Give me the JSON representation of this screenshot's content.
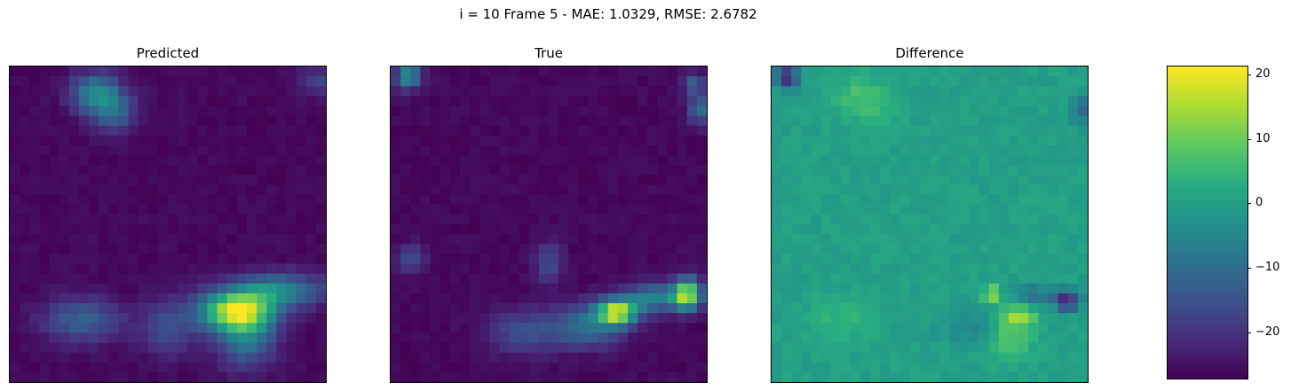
{
  "figure": {
    "suptitle": "i = 10 Frame 5 - MAE: 1.0329, RMSE: 2.6782"
  },
  "chart_data": [
    {
      "type": "heatmap",
      "title": "Predicted",
      "grid_size": [
        32,
        32
      ],
      "value_range": [
        0,
        14
      ],
      "blobs": [
        {
          "cx": 8.2,
          "cy": 2.2,
          "amp": 6,
          "sx": 1.8,
          "sy": 1.4
        },
        {
          "cx": 10.0,
          "cy": 4.2,
          "amp": 4,
          "sx": 1.6,
          "sy": 1.4
        },
        {
          "cx": 22.4,
          "cy": 24.3,
          "amp": 12,
          "sx": 2.6,
          "sy": 1.4
        },
        {
          "cx": 26.8,
          "cy": 22.2,
          "amp": 6,
          "sx": 3.2,
          "sy": 1.2
        },
        {
          "cx": 23.5,
          "cy": 27.0,
          "amp": 5,
          "sx": 2.0,
          "sy": 2.2
        },
        {
          "cx": 6.8,
          "cy": 25.2,
          "amp": 4,
          "sx": 2.8,
          "sy": 1.6
        },
        {
          "cx": 15.5,
          "cy": 26.0,
          "amp": 3,
          "sx": 2.0,
          "sy": 2.0
        },
        {
          "cx": 30.5,
          "cy": 1.0,
          "amp": 2.5,
          "sx": 1.2,
          "sy": 1.0
        }
      ]
    },
    {
      "type": "heatmap",
      "title": "True",
      "grid_size": [
        32,
        32
      ],
      "value_range": [
        0,
        14
      ],
      "blobs": [
        {
          "cx": 22.4,
          "cy": 24.4,
          "amp": 12,
          "sx": 1.4,
          "sy": 0.9
        },
        {
          "cx": 29.5,
          "cy": 22.6,
          "amp": 12,
          "sx": 1.0,
          "sy": 1.1
        },
        {
          "cx": 26.0,
          "cy": 23.0,
          "amp": 6,
          "sx": 2.0,
          "sy": 1.0
        },
        {
          "cx": 19.5,
          "cy": 25.8,
          "amp": 5,
          "sx": 2.5,
          "sy": 1.5
        },
        {
          "cx": 13.0,
          "cy": 26.5,
          "amp": 3,
          "sx": 2.6,
          "sy": 1.6
        },
        {
          "cx": 1.3,
          "cy": 0.5,
          "amp": 7,
          "sx": 0.9,
          "sy": 0.9
        },
        {
          "cx": 30.8,
          "cy": 3.8,
          "amp": 5,
          "sx": 0.8,
          "sy": 1.0
        },
        {
          "cx": 30.2,
          "cy": 1.2,
          "amp": 4,
          "sx": 0.8,
          "sy": 0.8
        },
        {
          "cx": 1.6,
          "cy": 19.0,
          "amp": 3,
          "sx": 1.0,
          "sy": 1.0
        },
        {
          "cx": 15.5,
          "cy": 19.5,
          "amp": 3,
          "sx": 1.0,
          "sy": 1.5
        }
      ]
    },
    {
      "type": "heatmap",
      "title": "Difference",
      "grid_size": [
        32,
        32
      ],
      "value_range": [
        -27.2,
        21.2
      ],
      "blobs": [
        {
          "cx": 8.2,
          "cy": 2.2,
          "amp": 6,
          "sx": 1.8,
          "sy": 1.4
        },
        {
          "cx": 10.0,
          "cy": 4.2,
          "amp": 4,
          "sx": 1.6,
          "sy": 1.4
        },
        {
          "cx": 6.8,
          "cy": 25.2,
          "amp": 4,
          "sx": 2.8,
          "sy": 1.6
        },
        {
          "cx": 24.5,
          "cy": 24.8,
          "amp": 14,
          "sx": 1.2,
          "sy": 0.8
        },
        {
          "cx": 21.8,
          "cy": 22.6,
          "amp": 16,
          "sx": 0.6,
          "sy": 0.6
        },
        {
          "cx": 23.5,
          "cy": 27.2,
          "amp": 8,
          "sx": 1.6,
          "sy": 1.4
        },
        {
          "cx": 29.4,
          "cy": 23.2,
          "amp": -22,
          "sx": 0.9,
          "sy": 0.8
        },
        {
          "cx": 26.2,
          "cy": 22.8,
          "amp": -10,
          "sx": 1.4,
          "sy": 0.7
        },
        {
          "cx": 1.0,
          "cy": 0.6,
          "amp": -22,
          "sx": 0.8,
          "sy": 0.8
        },
        {
          "cx": 30.8,
          "cy": 3.8,
          "amp": -12,
          "sx": 0.7,
          "sy": 1.0
        },
        {
          "cx": 19.5,
          "cy": 26.0,
          "amp": -5,
          "sx": 2.0,
          "sy": 1.2
        }
      ]
    }
  ],
  "colorbar": {
    "ylim": [
      -27.2,
      21.2
    ],
    "ticks": [
      "20",
      "10",
      "0",
      "−10",
      "−20"
    ],
    "tick_values": [
      20,
      10,
      0,
      -10,
      -20
    ],
    "colormap": "viridis"
  }
}
